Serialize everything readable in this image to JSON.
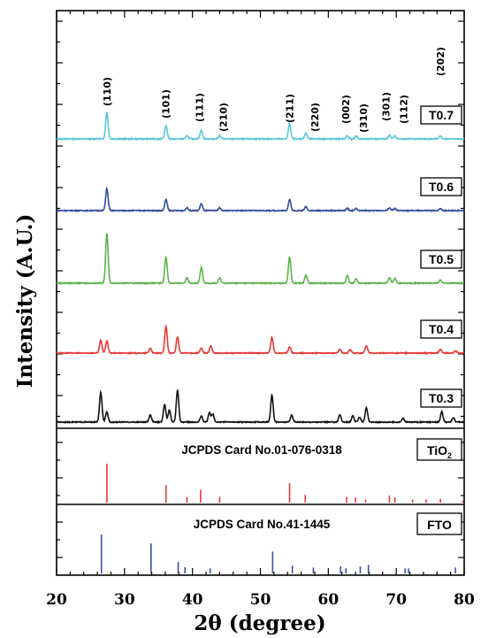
{
  "chart_data": {
    "type": "line",
    "xlabel": "2θ (degree)",
    "ylabel": "Intensity (A.U.)",
    "xlim": [
      20,
      80
    ],
    "xticks": [
      "20",
      "30",
      "40",
      "50",
      "60",
      "70",
      "80"
    ],
    "grid": false,
    "series": [
      {
        "name": "T0.7",
        "color": "#5bc7d9",
        "baseline": 20,
        "peaks": [
          [
            27.4,
            100
          ],
          [
            36.1,
            50
          ],
          [
            39.2,
            12
          ],
          [
            41.3,
            33
          ],
          [
            44.0,
            12
          ],
          [
            54.3,
            58
          ],
          [
            56.7,
            22
          ],
          [
            62.8,
            12
          ],
          [
            64.1,
            11
          ],
          [
            69.0,
            14
          ],
          [
            69.8,
            11
          ],
          [
            76.5,
            10
          ]
        ]
      },
      {
        "name": "T0.6",
        "color": "#354d9c",
        "baseline": 20,
        "peaks": [
          [
            27.4,
            95
          ],
          [
            36.1,
            48
          ],
          [
            39.2,
            12
          ],
          [
            41.3,
            30
          ],
          [
            44.0,
            12
          ],
          [
            54.3,
            48
          ],
          [
            56.7,
            18
          ],
          [
            62.8,
            10
          ],
          [
            64.1,
            9
          ],
          [
            69.0,
            12
          ],
          [
            69.8,
            9
          ],
          [
            76.5,
            9
          ]
        ]
      },
      {
        "name": "T0.5",
        "color": "#5bb34a",
        "baseline": 20,
        "peaks": [
          [
            27.4,
            210
          ],
          [
            36.1,
            110
          ],
          [
            39.2,
            22
          ],
          [
            41.3,
            65
          ],
          [
            44.0,
            22
          ],
          [
            54.3,
            110
          ],
          [
            56.7,
            35
          ],
          [
            62.8,
            32
          ],
          [
            64.1,
            18
          ],
          [
            69.0,
            22
          ],
          [
            69.8,
            20
          ],
          [
            76.5,
            14
          ]
        ]
      },
      {
        "name": "T0.4",
        "color": "#e53935",
        "baseline": 20,
        "peaks": [
          [
            26.5,
            58
          ],
          [
            27.4,
            55
          ],
          [
            33.8,
            22
          ],
          [
            36.1,
            120
          ],
          [
            37.8,
            72
          ],
          [
            41.3,
            22
          ],
          [
            42.7,
            32
          ],
          [
            51.7,
            70
          ],
          [
            54.3,
            28
          ],
          [
            61.7,
            18
          ],
          [
            63.2,
            15
          ],
          [
            65.6,
            32
          ],
          [
            76.5,
            18
          ],
          [
            78.7,
            10
          ]
        ]
      },
      {
        "name": "T0.3",
        "color": "#111111",
        "baseline": 20,
        "peaks": [
          [
            26.5,
            120
          ],
          [
            27.4,
            40
          ],
          [
            33.8,
            30
          ],
          [
            35.9,
            72
          ],
          [
            36.6,
            48
          ],
          [
            37.8,
            130
          ],
          [
            41.3,
            25
          ],
          [
            42.5,
            38
          ],
          [
            43.0,
            32
          ],
          [
            51.7,
            110
          ],
          [
            54.6,
            28
          ],
          [
            61.7,
            30
          ],
          [
            63.6,
            25
          ],
          [
            64.6,
            20
          ],
          [
            65.6,
            58
          ],
          [
            71.0,
            15
          ],
          [
            76.7,
            42
          ],
          [
            78.4,
            18
          ]
        ]
      }
    ],
    "hkl_labels": [
      {
        "label": "(110)",
        "x": 27.4
      },
      {
        "label": "(101)",
        "x": 36.1
      },
      {
        "label": "(111)",
        "x": 41.3
      },
      {
        "label": "(210)",
        "x": 44.0
      },
      {
        "label": "(211)",
        "x": 54.3
      },
      {
        "label": "(220)",
        "x": 56.7
      },
      {
        "label": "(002)",
        "x": 62.8
      },
      {
        "label": "(310)",
        "x": 64.1
      },
      {
        "label": "(301)",
        "x": 69.0
      },
      {
        "label": "(112)",
        "x": 69.8
      },
      {
        "label": "(202)",
        "x": 76.5
      }
    ],
    "references": [
      {
        "name": "TiO2",
        "card": "JCPDS Card No.01-076-0318",
        "color": "#e53935",
        "lines": [
          [
            27.4,
            100
          ],
          [
            36.1,
            45
          ],
          [
            39.2,
            15
          ],
          [
            41.2,
            33
          ],
          [
            44.0,
            15
          ],
          [
            54.3,
            50
          ],
          [
            56.6,
            20
          ],
          [
            62.7,
            15
          ],
          [
            64.0,
            13
          ],
          [
            65.5,
            8
          ],
          [
            69.0,
            18
          ],
          [
            69.8,
            13
          ],
          [
            72.4,
            8
          ],
          [
            74.4,
            8
          ],
          [
            76.5,
            10
          ],
          [
            79.8,
            5
          ]
        ]
      },
      {
        "name": "FTO",
        "card": "JCPDS Card No.41-1445",
        "color": "#3f51a8",
        "lines": [
          [
            26.6,
            100
          ],
          [
            33.9,
            77
          ],
          [
            37.9,
            29
          ],
          [
            38.9,
            16
          ],
          [
            42.6,
            13
          ],
          [
            51.8,
            56
          ],
          [
            54.7,
            20
          ],
          [
            57.8,
            15
          ],
          [
            61.8,
            18
          ],
          [
            62.6,
            13
          ],
          [
            64.7,
            18
          ],
          [
            65.9,
            22
          ],
          [
            71.3,
            13
          ],
          [
            71.8,
            13
          ],
          [
            78.7,
            15
          ]
        ]
      }
    ]
  }
}
